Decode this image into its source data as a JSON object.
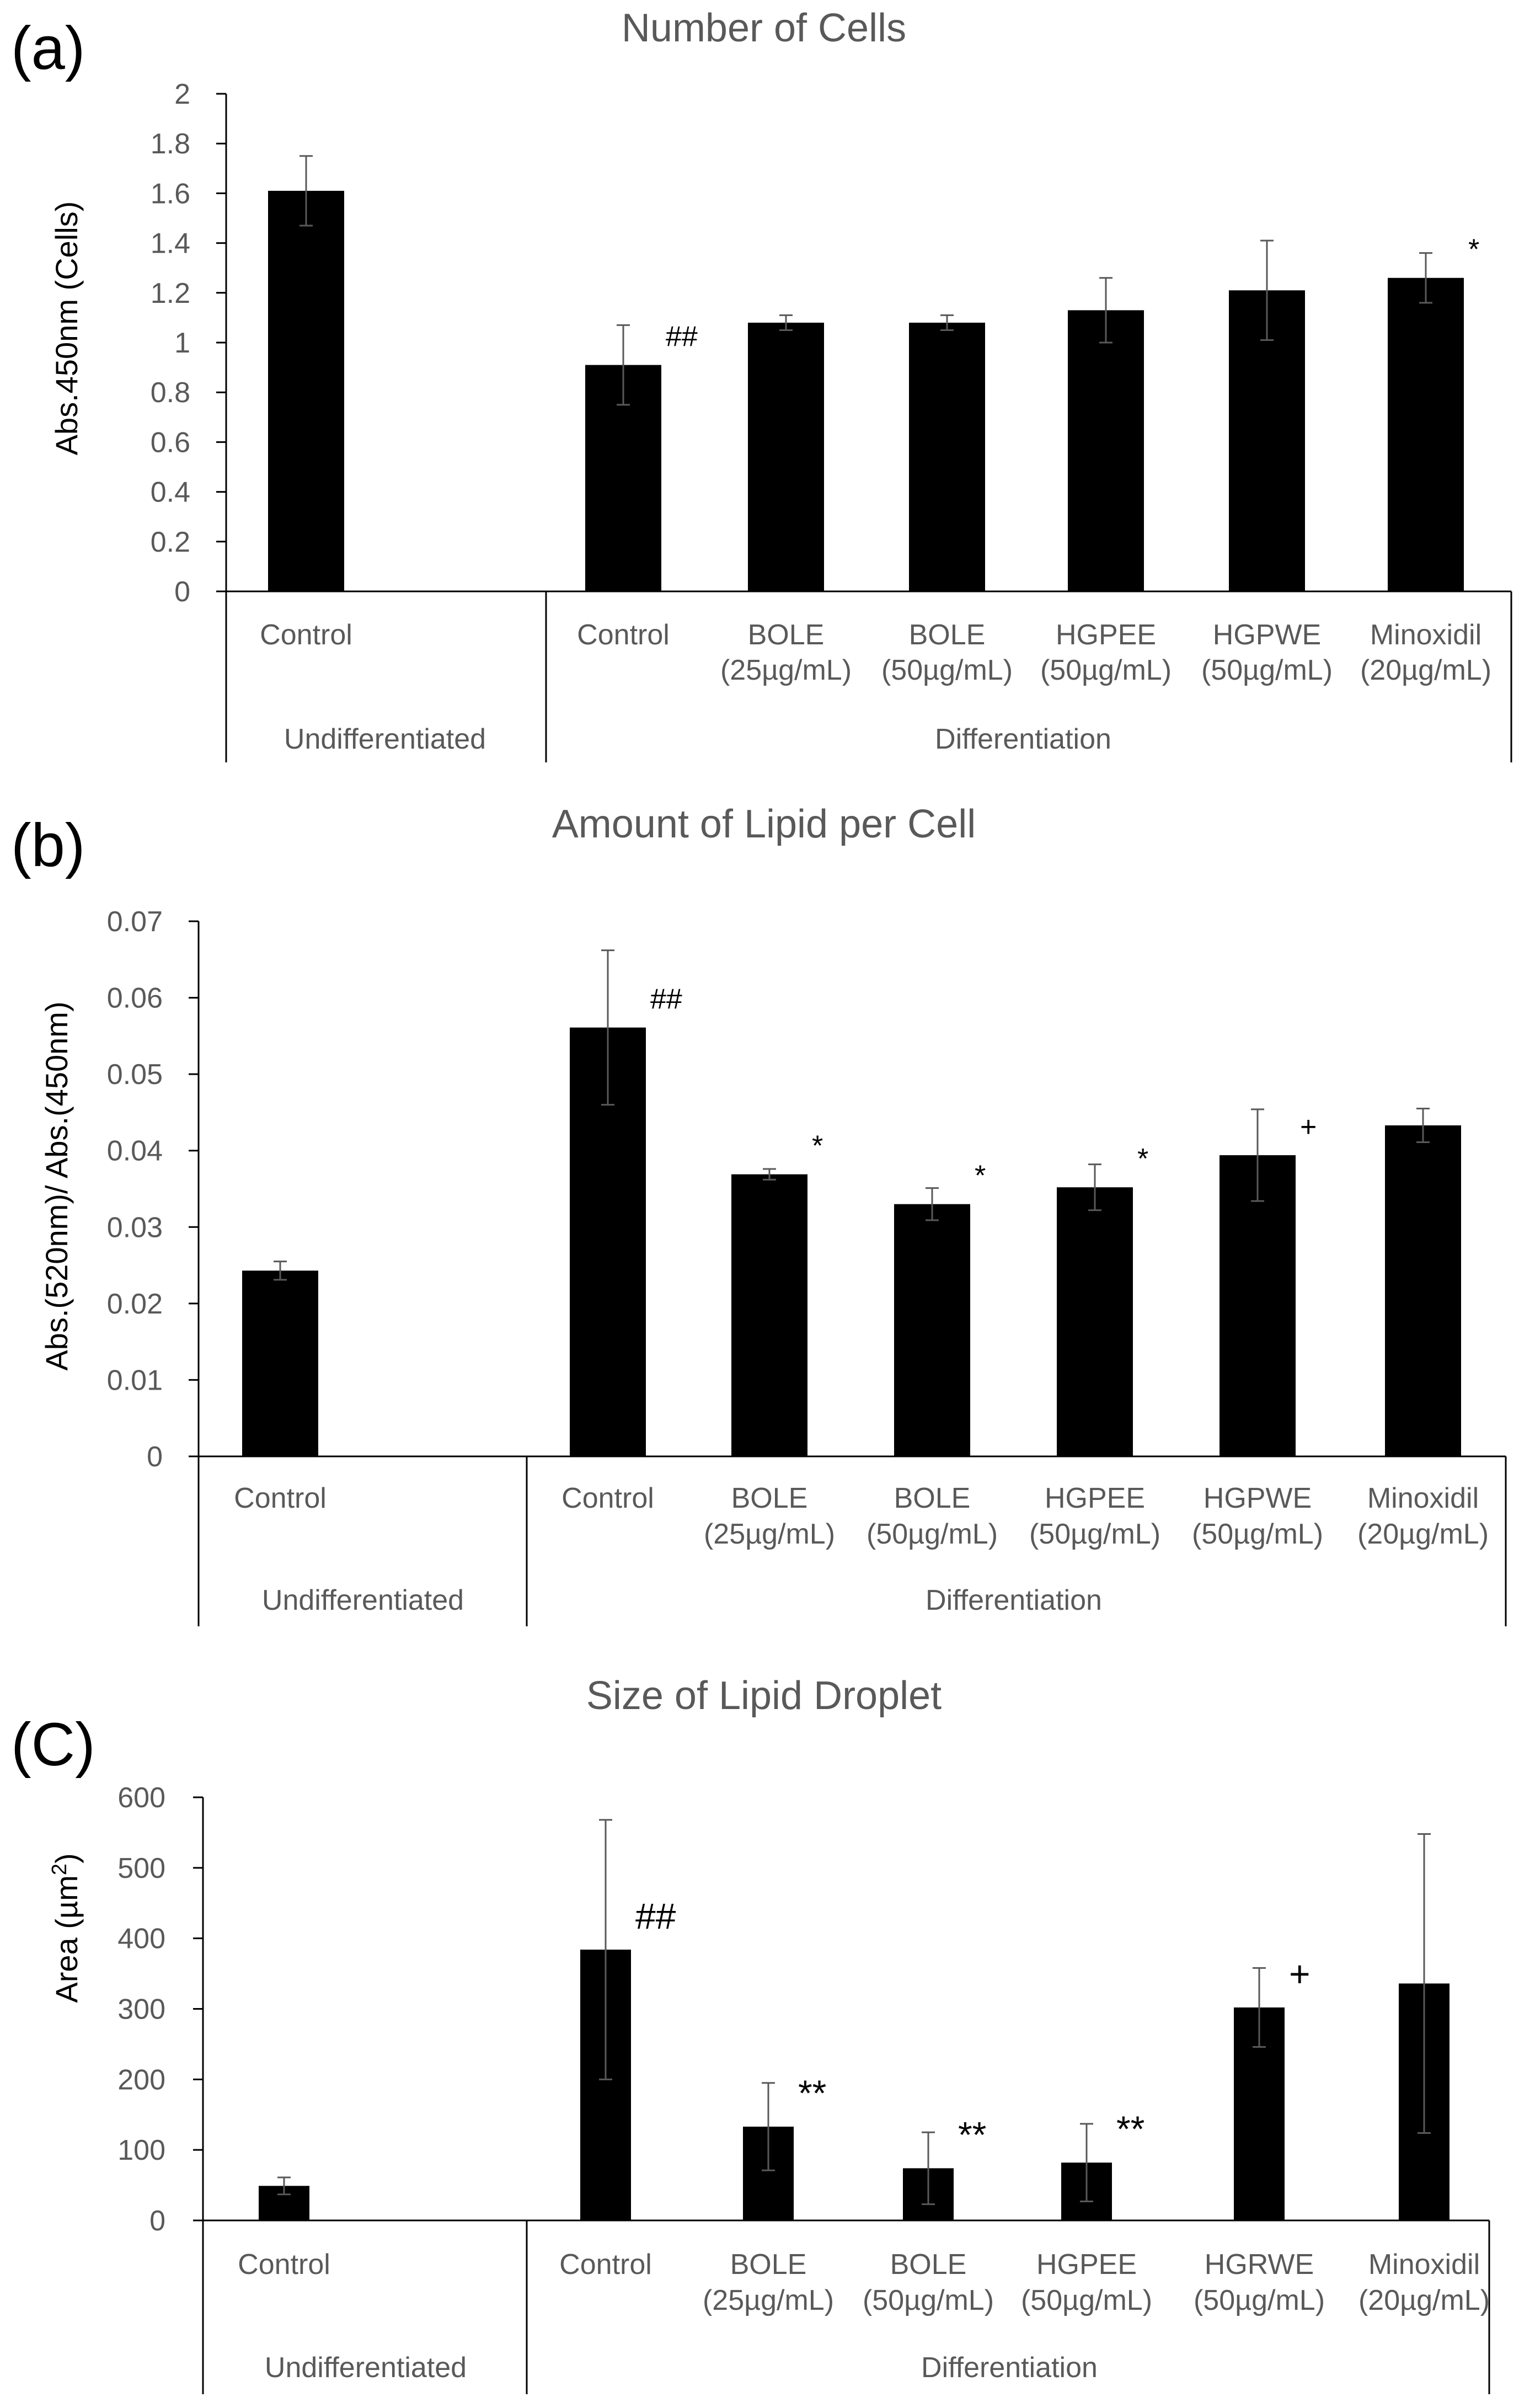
{
  "chart_data": [
    {
      "type": "bar",
      "panel_label": "(a)",
      "title": "Number of Cells",
      "ylabel": "Abs.450nm (Cells)",
      "ylim": [
        0,
        2
      ],
      "yticks": [
        0,
        0.2,
        0.4,
        0.6,
        0.8,
        1,
        1.2,
        1.4,
        1.6,
        1.8,
        2
      ],
      "ytick_labels": [
        "0",
        "0.2",
        "0.4",
        "0.6",
        "0.8",
        "1",
        "1.2",
        "1.4",
        "1.6",
        "1.8",
        "2"
      ],
      "categories": [
        {
          "line1": "Control",
          "line2": ""
        },
        {
          "line1": "Control",
          "line2": ""
        },
        {
          "line1": "BOLE",
          "line2": "(25µg/mL)"
        },
        {
          "line1": "BOLE",
          "line2": "(50µg/mL)"
        },
        {
          "line1": "HGPEE",
          "line2": "(50µg/mL)"
        },
        {
          "line1": "HGPWE",
          "line2": "(50µg/mL)"
        },
        {
          "line1": "Minoxidil",
          "line2": "(20µg/mL)"
        }
      ],
      "values": [
        1.61,
        0.91,
        1.08,
        1.08,
        1.13,
        1.21,
        1.26
      ],
      "errors": [
        0.14,
        0.16,
        0.03,
        0.03,
        0.13,
        0.2,
        0.1
      ],
      "annotations": [
        "",
        "##",
        "",
        "",
        "",
        "",
        "*"
      ],
      "groups": [
        "Undifferentiated",
        "Differentiation"
      ]
    },
    {
      "type": "bar",
      "panel_label": "(b)",
      "title": "Amount of Lipid per Cell",
      "ylabel": "Abs.(520nm)/ Abs.(450nm)",
      "ylim": [
        0,
        0.07
      ],
      "yticks": [
        0,
        0.01,
        0.02,
        0.03,
        0.04,
        0.05,
        0.06,
        0.07
      ],
      "ytick_labels": [
        "0",
        "0.01",
        "0.02",
        "0.03",
        "0.04",
        "0.05",
        "0.06",
        "0.07"
      ],
      "categories": [
        {
          "line1": "Control",
          "line2": ""
        },
        {
          "line1": "Control",
          "line2": ""
        },
        {
          "line1": "BOLE",
          "line2": "(25µg/mL)"
        },
        {
          "line1": "BOLE",
          "line2": "(50µg/mL)"
        },
        {
          "line1": "HGPEE",
          "line2": "(50µg/mL)"
        },
        {
          "line1": "HGPWE",
          "line2": "(50µg/mL)"
        },
        {
          "line1": "Minoxidil",
          "line2": "(20µg/mL)"
        }
      ],
      "values": [
        0.0243,
        0.0561,
        0.0369,
        0.033,
        0.0352,
        0.0394,
        0.0433
      ],
      "errors": [
        0.0012,
        0.0101,
        0.0007,
        0.0021,
        0.003,
        0.006,
        0.0022
      ],
      "annotations": [
        "",
        "##",
        "*",
        "*",
        "*",
        "+",
        ""
      ],
      "groups": [
        "Undifferentiated",
        "Differentiation"
      ]
    },
    {
      "type": "bar",
      "panel_label": "(C)",
      "title": "Size of Lipid Droplet",
      "ylabel_main": "Area (µm",
      "ylabel_sup": "2",
      "ylabel_end": ")",
      "ylim": [
        0,
        600
      ],
      "yticks": [
        0,
        100,
        200,
        300,
        400,
        500,
        600
      ],
      "ytick_labels": [
        "0",
        "100",
        "200",
        "300",
        "400",
        "500",
        "600"
      ],
      "categories": [
        {
          "line1": "Control",
          "line2": ""
        },
        {
          "line1": "Control",
          "line2": ""
        },
        {
          "line1": "BOLE",
          "line2": "(25µg/mL)"
        },
        {
          "line1": "BOLE",
          "line2": "(50µg/mL)"
        },
        {
          "line1": "HGPEE",
          "line2": "(50µg/mL)"
        },
        {
          "line1": "HGRWE",
          "line2": "(50µg/mL)"
        },
        {
          "line1": "Minoxidil",
          "line2": "(20µg/mL)"
        }
      ],
      "values": [
        49,
        384,
        133,
        74,
        82,
        302,
        336
      ],
      "errors": [
        12,
        184,
        62,
        51,
        55,
        56,
        212
      ],
      "annotations": [
        "",
        "##",
        "**",
        "**",
        "**",
        "+",
        ""
      ],
      "groups": [
        "Undifferentiated",
        "Differentiation"
      ]
    }
  ]
}
